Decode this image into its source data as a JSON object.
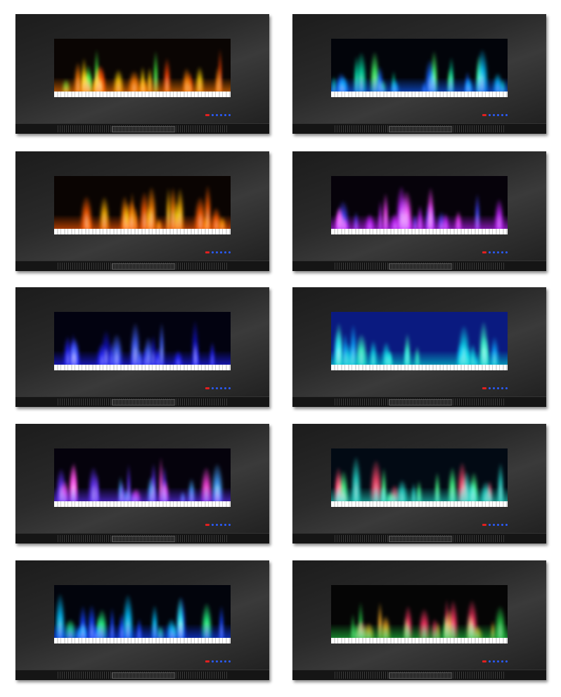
{
  "panels": [
    {
      "flame_colors": [
        "#ff7a00",
        "#ffd000",
        "#3cff3c",
        "#ff4000"
      ],
      "screen_bg": "#0a0503"
    },
    {
      "flame_colors": [
        "#1060ff",
        "#00e0a0",
        "#40ff60",
        "#00c0ff"
      ],
      "screen_bg": "#02040a"
    },
    {
      "flame_colors": [
        "#ff5a00",
        "#ffb000",
        "#ff8000"
      ],
      "screen_bg": "#0a0402"
    },
    {
      "flame_colors": [
        "#c020ff",
        "#ff40ff",
        "#4040ff"
      ],
      "screen_bg": "#06020a"
    },
    {
      "flame_colors": [
        "#2020ff",
        "#4060ff",
        "#1010c0"
      ],
      "screen_bg": "#020210"
    },
    {
      "flame_colors": [
        "#00d0d0",
        "#30ff90",
        "#00a0ff"
      ],
      "screen_bg": "#0a1a80"
    },
    {
      "flame_colors": [
        "#6030ff",
        "#ff40e0",
        "#40a0ff"
      ],
      "screen_bg": "#05020c"
    },
    {
      "flame_colors": [
        "#20d0c0",
        "#ff4060",
        "#40ff80"
      ],
      "screen_bg": "#020a14"
    },
    {
      "flame_colors": [
        "#1040ff",
        "#20ff80",
        "#00c0ff"
      ],
      "screen_bg": "#02040c"
    },
    {
      "flame_colors": [
        "#20c040",
        "#ff3060",
        "#ffb020"
      ],
      "screen_bg": "#050505"
    }
  ],
  "control_led_colors": {
    "power": "#e02020",
    "buttons": "#2a5cff"
  }
}
